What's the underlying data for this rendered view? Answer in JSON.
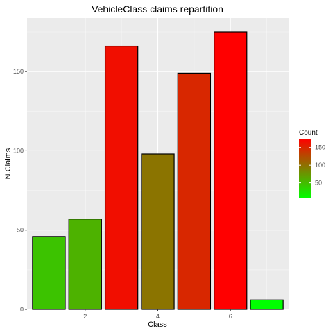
{
  "chart_data": {
    "type": "bar",
    "title": "VehicleClass claims repartition",
    "xlabel": "Class",
    "ylabel": "N.Claims",
    "x": [
      1,
      2,
      3,
      4,
      5,
      6,
      7
    ],
    "values": [
      46,
      57,
      166,
      98,
      149,
      175,
      6
    ],
    "x_ticks": [
      2,
      4,
      6
    ],
    "y_ticks": [
      0,
      50,
      100,
      150
    ],
    "xlim": [
      0.4,
      7.6
    ],
    "ylim": [
      0,
      183.75
    ],
    "grid": true,
    "bar_width": 0.9,
    "legend": {
      "title": "Count",
      "placement": "right",
      "ticks": [
        50,
        100,
        150
      ],
      "range": [
        6,
        175
      ],
      "low_color": "#00ff00",
      "high_color": "#ff0000"
    },
    "colors": {
      "panel_background": "#ebebeb",
      "grid_major": "#ffffff",
      "grid_minor": "#f5f5f5",
      "bar_outline": "#000000",
      "tick_text": "#4d4d4d"
    }
  }
}
